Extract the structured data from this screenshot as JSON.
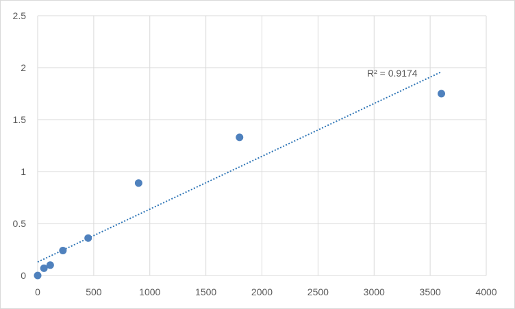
{
  "chart_data": {
    "type": "scatter",
    "title": "",
    "xlabel": "",
    "ylabel": "",
    "xlim": [
      0,
      4000
    ],
    "ylim": [
      0,
      2.5
    ],
    "x_ticks": [
      0,
      500,
      1000,
      1500,
      2000,
      2500,
      3000,
      3500,
      4000
    ],
    "y_ticks": [
      0,
      0.5,
      1,
      1.5,
      2,
      2.5
    ],
    "x_tick_labels": [
      "0",
      "500",
      "1000",
      "1500",
      "2000",
      "2500",
      "3000",
      "3500",
      "4000"
    ],
    "y_tick_labels": [
      "0",
      "0.5",
      "1",
      "1.5",
      "2",
      "2.5"
    ],
    "grid": true,
    "legend": "none",
    "points": [
      {
        "x": 0,
        "y": 0.0
      },
      {
        "x": 56,
        "y": 0.07
      },
      {
        "x": 112,
        "y": 0.1
      },
      {
        "x": 225,
        "y": 0.24
      },
      {
        "x": 450,
        "y": 0.36
      },
      {
        "x": 900,
        "y": 0.89
      },
      {
        "x": 1800,
        "y": 1.33
      },
      {
        "x": 3600,
        "y": 1.75
      }
    ],
    "trendline": {
      "type": "linear",
      "x_start": 0,
      "y_start": 0.13,
      "x_end": 3600,
      "y_end": 1.96,
      "style": "dotted"
    },
    "annotation": "R² = 0.9174",
    "colors": {
      "marker": "#4f81bd",
      "trendline": "#2e75b6",
      "grid": "#d9d9d9"
    }
  }
}
